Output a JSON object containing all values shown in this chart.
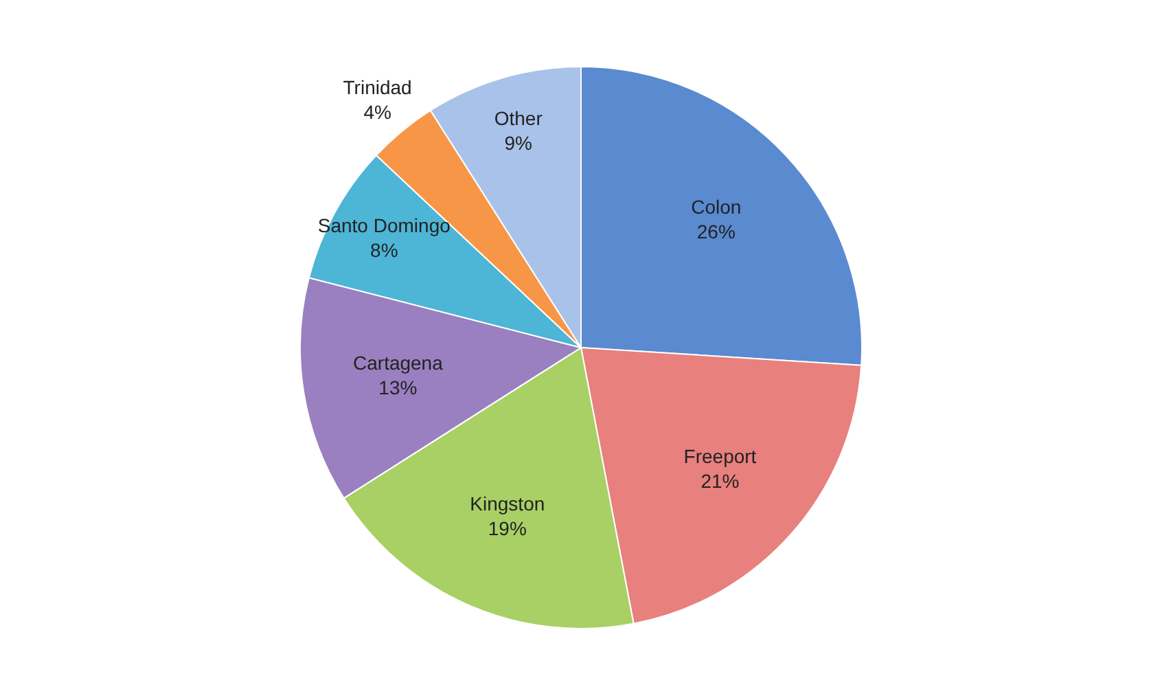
{
  "chart_data": {
    "type": "pie",
    "categories": [
      "Colon",
      "Freeport",
      "Kingston",
      "Cartagena",
      "Santo Domingo",
      "Trinidad",
      "Other"
    ],
    "values": [
      26,
      21,
      19,
      13,
      8,
      4,
      9
    ],
    "colors": [
      "#5a8ad0",
      "#e8807e",
      "#a8d065",
      "#9a80c0",
      "#4db5d6",
      "#f79646",
      "#a9c2ea"
    ],
    "value_labels": [
      "26%",
      "21%",
      "19%",
      "13%",
      "8%",
      "4%",
      "9%"
    ],
    "legend": false
  }
}
